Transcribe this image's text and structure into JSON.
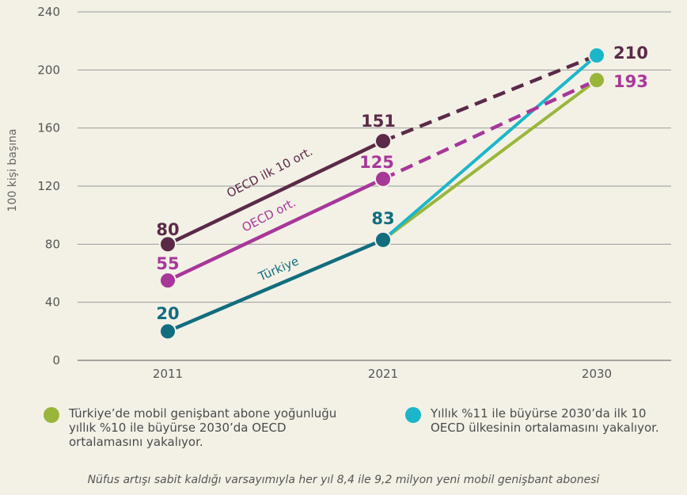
{
  "chart_data": {
    "type": "line",
    "ylabel": "100 kişi başına",
    "ylim": [
      0,
      240
    ],
    "yticks": [
      0,
      40,
      80,
      120,
      160,
      200,
      240
    ],
    "x": [
      "2011",
      "2021",
      "2030"
    ],
    "series": [
      {
        "name": "OECD ilk 10 ort.",
        "color": "#5b2a48",
        "values": [
          80,
          151,
          210
        ],
        "dashed_from": 1
      },
      {
        "name": "OECD ort.",
        "color": "#a8379a",
        "values": [
          55,
          125,
          193
        ],
        "dashed_from": 1
      },
      {
        "name": "Türkiye",
        "color": "#126d7e",
        "values": [
          20,
          83,
          null
        ]
      }
    ],
    "projections": [
      {
        "color": "#9ab63a",
        "from": [
          "2021",
          83
        ],
        "to": [
          "2030",
          193
        ]
      },
      {
        "color": "#1cb6c9",
        "from": [
          "2021",
          83
        ],
        "to": [
          "2030",
          210
        ]
      }
    ],
    "data_labels": {
      "2011": [
        "80",
        "55",
        "20"
      ],
      "2021": [
        "151",
        "125",
        "83"
      ],
      "2030": [
        "210",
        "193"
      ]
    }
  },
  "legend": [
    {
      "color": "#9ab63a",
      "text": "Türkiye’de mobil genişbant abone yoğunluğu\nyıllık %10 ile büyürse 2030’da OECD\nortalamasını yakalıyor."
    },
    {
      "color": "#1cb6c9",
      "text": "Yıllık %11 ile büyürse 2030’da ilk 10\nOECD ülkesinin ortalamasını yakalıyor."
    }
  ],
  "note": "Nüfus artışı sabit kaldığı varsayımıyla her yıl 8,4 ile 9,2 milyon yeni mobil genişbant abonesi"
}
